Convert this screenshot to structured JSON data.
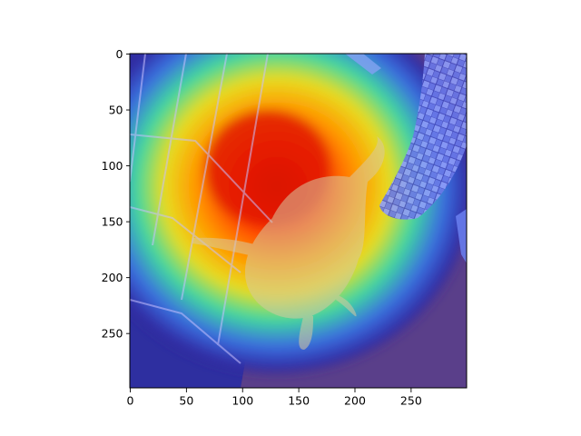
{
  "chart_data": {
    "type": "heatmap",
    "title": "",
    "xlabel": "",
    "ylabel": "",
    "xlim": [
      0,
      299
    ],
    "ylim": [
      299,
      0
    ],
    "x_ticks": [
      0,
      50,
      100,
      150,
      200,
      250
    ],
    "y_ticks": [
      0,
      50,
      100,
      150,
      200,
      250
    ],
    "colormap": "jet",
    "overlay": "heatmap overlaid on photograph",
    "hotspot": {
      "x": 135,
      "y": 115
    },
    "grid": false,
    "legend": "none"
  }
}
